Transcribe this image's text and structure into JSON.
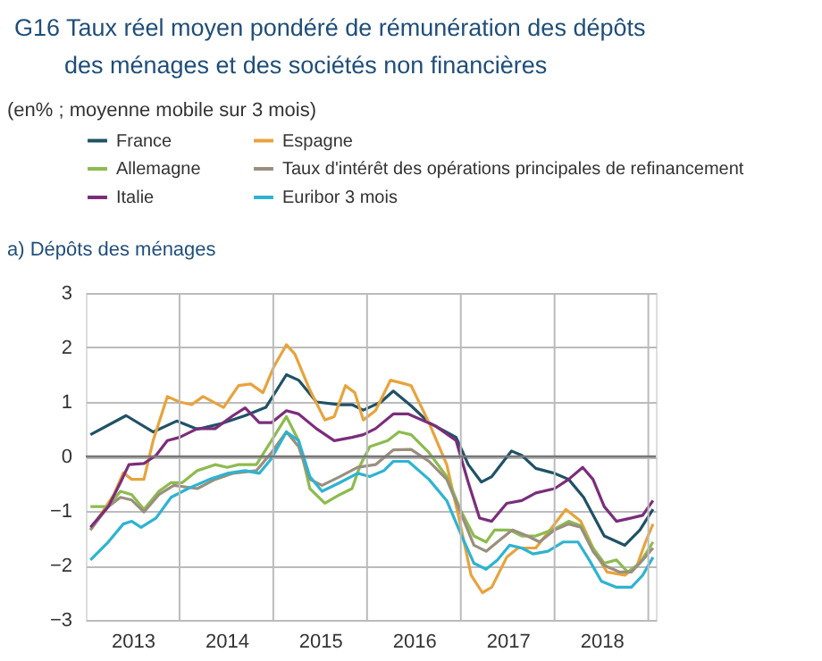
{
  "chart_data": {
    "type": "line",
    "title": "G16 Taux réel moyen pondéré de rémunération des dépôts des ménages et des sociétés non financières",
    "subtitle": "(en% ; moyenne mobile sur 3 mois)",
    "annotations": [
      "a) Dépôts des ménages"
    ],
    "xlim": [
      2013,
      2019.08
    ],
    "xticks": [
      {
        "value": 2013.5,
        "label": "2013"
      },
      {
        "value": 2014,
        "label": null
      },
      {
        "value": 2014.5,
        "label": "2014"
      },
      {
        "value": 2015,
        "label": null
      },
      {
        "value": 2015.5,
        "label": "2015"
      },
      {
        "value": 2016,
        "label": null
      },
      {
        "value": 2016.5,
        "label": "2016"
      },
      {
        "value": 2017,
        "label": null
      },
      {
        "value": 2017.5,
        "label": "2017"
      },
      {
        "value": 2018,
        "label": null
      },
      {
        "value": 2018.5,
        "label": "2018"
      },
      {
        "value": 2019,
        "label": null
      }
    ],
    "ylim": [
      -3,
      3
    ],
    "yticks": [
      -3,
      -2,
      -1,
      0,
      1,
      2,
      3
    ],
    "grid": true,
    "legend": "top",
    "marker": "none",
    "line_style": "solid",
    "ref_lines": [
      {
        "axis": "y",
        "value": 0,
        "label": null,
        "color": "#777777"
      }
    ],
    "series": [
      {
        "name": "France",
        "color": "#1f5266",
        "x": [
          2013.05,
          2013.43,
          2013.72,
          2013.97,
          2014.19,
          2014.44,
          2014.7,
          2014.92,
          2015.14,
          2015.27,
          2015.46,
          2015.71,
          2015.84,
          2015.96,
          2016.15,
          2016.28,
          2016.47,
          2016.66,
          2016.95,
          2017.08,
          2017.22,
          2017.33,
          2017.54,
          2017.65,
          2017.8,
          2018.0,
          2018.15,
          2018.31,
          2018.53,
          2018.75,
          2018.91,
          2019.05
        ],
        "values": [
          0.4,
          0.75,
          0.45,
          0.65,
          0.5,
          0.6,
          0.75,
          0.9,
          1.5,
          1.4,
          1.0,
          0.95,
          0.95,
          0.85,
          1.0,
          1.2,
          0.93,
          0.62,
          0.35,
          -0.15,
          -0.47,
          -0.37,
          0.1,
          0.02,
          -0.22,
          -0.31,
          -0.42,
          -0.75,
          -1.46,
          -1.63,
          -1.35,
          -0.97
        ]
      },
      {
        "name": "Espagne",
        "color": "#e8a33d",
        "x": [
          2013.05,
          2013.3,
          2013.4,
          2013.49,
          2013.62,
          2013.72,
          2013.87,
          2014.0,
          2014.13,
          2014.25,
          2014.47,
          2014.63,
          2014.76,
          2014.89,
          2015.01,
          2015.14,
          2015.23,
          2015.39,
          2015.55,
          2015.65,
          2015.77,
          2015.87,
          2015.96,
          2016.09,
          2016.25,
          2016.41,
          2016.47,
          2016.66,
          2016.85,
          2016.98,
          2017.11,
          2017.23,
          2017.33,
          2017.49,
          2017.61,
          2017.8,
          2018.0,
          2018.12,
          2018.28,
          2018.44,
          2018.56,
          2018.75,
          2018.88,
          2018.97,
          2019.05
        ],
        "values": [
          -1.35,
          -0.7,
          -0.3,
          -0.42,
          -0.42,
          0.3,
          1.1,
          1.0,
          0.95,
          1.1,
          0.9,
          1.3,
          1.33,
          1.17,
          1.66,
          2.05,
          1.88,
          1.22,
          0.67,
          0.73,
          1.3,
          1.17,
          0.67,
          0.84,
          1.4,
          1.33,
          1.3,
          0.62,
          -0.15,
          -1.13,
          -2.18,
          -2.5,
          -2.4,
          -1.85,
          -1.68,
          -1.68,
          -1.24,
          -0.97,
          -1.19,
          -1.79,
          -2.12,
          -2.18,
          -2.0,
          -1.57,
          -1.24
        ]
      },
      {
        "name": "Allemagne",
        "color": "#8dbb4f",
        "x": [
          2013.05,
          2013.24,
          2013.37,
          2013.49,
          2013.62,
          2013.78,
          2013.91,
          2014.03,
          2014.19,
          2014.38,
          2014.51,
          2014.63,
          2014.82,
          2014.98,
          2015.14,
          2015.27,
          2015.39,
          2015.55,
          2015.71,
          2015.84,
          2015.93,
          2016.03,
          2016.22,
          2016.34,
          2016.47,
          2016.66,
          2016.85,
          2017.01,
          2017.14,
          2017.27,
          2017.36,
          2017.52,
          2017.65,
          2017.8,
          2018.0,
          2018.15,
          2018.28,
          2018.41,
          2018.53,
          2018.66,
          2018.78,
          2018.91,
          2019.05
        ],
        "values": [
          -0.92,
          -0.92,
          -0.64,
          -0.7,
          -0.97,
          -0.64,
          -0.48,
          -0.48,
          -0.26,
          -0.15,
          -0.2,
          -0.15,
          -0.15,
          0.29,
          0.73,
          0.29,
          -0.59,
          -0.86,
          -0.7,
          -0.59,
          -0.15,
          0.18,
          0.29,
          0.45,
          0.4,
          0.07,
          -0.37,
          -1.03,
          -1.46,
          -1.57,
          -1.35,
          -1.35,
          -1.46,
          -1.46,
          -1.33,
          -1.19,
          -1.27,
          -1.68,
          -1.96,
          -1.9,
          -2.12,
          -1.96,
          -1.57
        ]
      },
      {
        "name": "Taux d'intérêt des opérations principales de refinancement",
        "color": "#9a8f7e",
        "x": [
          2013.05,
          2013.24,
          2013.37,
          2013.49,
          2013.62,
          2013.78,
          2013.94,
          2014.19,
          2014.38,
          2014.57,
          2014.82,
          2014.98,
          2015.14,
          2015.27,
          2015.39,
          2015.52,
          2015.71,
          2015.9,
          2016.09,
          2016.28,
          2016.47,
          2016.66,
          2016.85,
          2017.01,
          2017.14,
          2017.27,
          2017.39,
          2017.55,
          2017.71,
          2017.84,
          2018.0,
          2018.15,
          2018.28,
          2018.41,
          2018.53,
          2018.69,
          2018.82,
          2018.94,
          2019.05
        ],
        "values": [
          -1.35,
          -0.92,
          -0.75,
          -0.8,
          -1.02,
          -0.7,
          -0.53,
          -0.59,
          -0.42,
          -0.31,
          -0.26,
          0.07,
          0.45,
          0.18,
          -0.42,
          -0.53,
          -0.37,
          -0.2,
          -0.15,
          0.12,
          0.13,
          -0.09,
          -0.42,
          -1.08,
          -1.63,
          -1.74,
          -1.57,
          -1.35,
          -1.46,
          -1.57,
          -1.35,
          -1.24,
          -1.3,
          -1.74,
          -2.0,
          -2.12,
          -2.12,
          -1.9,
          -1.68
        ]
      },
      {
        "name": "Italie",
        "color": "#7b2d7b",
        "x": [
          2013.05,
          2013.24,
          2013.37,
          2013.46,
          2013.62,
          2013.75,
          2013.87,
          2014.0,
          2014.19,
          2014.38,
          2014.57,
          2014.7,
          2014.85,
          2014.98,
          2015.14,
          2015.27,
          2015.46,
          2015.65,
          2015.84,
          2015.96,
          2016.09,
          2016.28,
          2016.44,
          2016.73,
          2016.95,
          2017.08,
          2017.2,
          2017.33,
          2017.49,
          2017.65,
          2017.8,
          2018.0,
          2018.15,
          2018.3,
          2018.41,
          2018.53,
          2018.66,
          2018.82,
          2018.94,
          2019.05
        ],
        "values": [
          -1.3,
          -0.92,
          -0.48,
          -0.15,
          -0.13,
          0.02,
          0.29,
          0.35,
          0.51,
          0.51,
          0.75,
          0.89,
          0.62,
          0.62,
          0.84,
          0.78,
          0.51,
          0.29,
          0.35,
          0.4,
          0.51,
          0.78,
          0.78,
          0.56,
          0.29,
          -0.48,
          -1.13,
          -1.19,
          -0.86,
          -0.81,
          -0.67,
          -0.59,
          -0.42,
          -0.2,
          -0.42,
          -0.92,
          -1.19,
          -1.13,
          -1.08,
          -0.81
        ]
      },
      {
        "name": "Euribor 3 mois",
        "color": "#2eb3d1",
        "x": [
          2013.05,
          2013.24,
          2013.4,
          2013.49,
          2013.59,
          2013.75,
          2013.91,
          2014.09,
          2014.32,
          2014.51,
          2014.7,
          2014.85,
          2014.98,
          2015.14,
          2015.27,
          2015.39,
          2015.52,
          2015.71,
          2015.9,
          2016.03,
          2016.18,
          2016.28,
          2016.44,
          2016.66,
          2016.85,
          2017.01,
          2017.14,
          2017.27,
          2017.39,
          2017.52,
          2017.65,
          2017.77,
          2017.93,
          2018.09,
          2018.25,
          2018.37,
          2018.5,
          2018.66,
          2018.82,
          2018.94,
          2019.05
        ],
        "values": [
          -1.9,
          -1.57,
          -1.24,
          -1.19,
          -1.3,
          -1.13,
          -0.75,
          -0.59,
          -0.42,
          -0.31,
          -0.26,
          -0.31,
          -0.04,
          0.45,
          0.29,
          -0.37,
          -0.64,
          -0.48,
          -0.31,
          -0.37,
          -0.26,
          -0.09,
          -0.09,
          -0.42,
          -0.81,
          -1.46,
          -1.96,
          -2.07,
          -1.9,
          -1.63,
          -1.68,
          -1.79,
          -1.74,
          -1.57,
          -1.57,
          -1.9,
          -2.29,
          -2.4,
          -2.4,
          -2.18,
          -1.85
        ]
      }
    ]
  }
}
